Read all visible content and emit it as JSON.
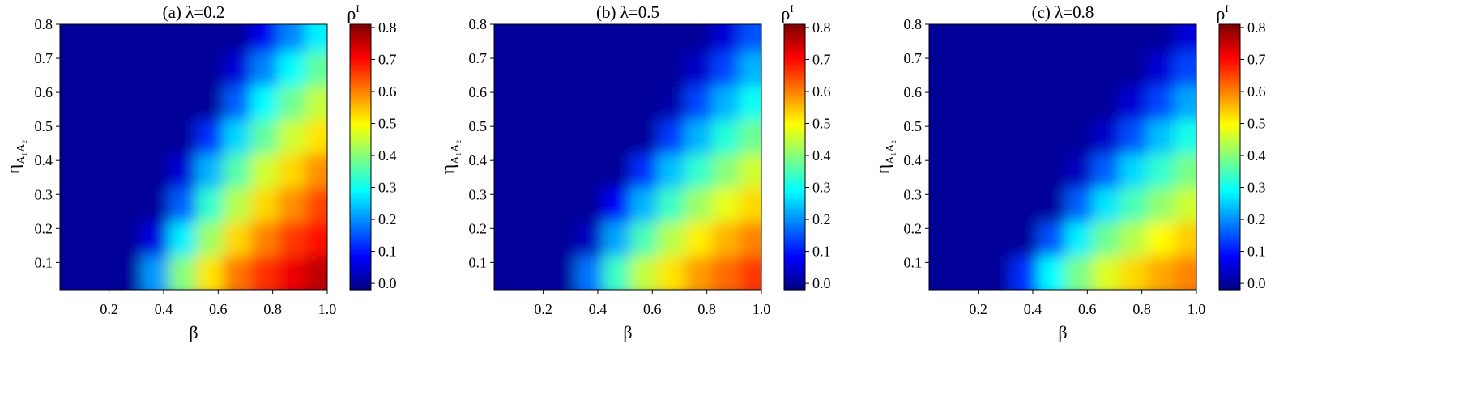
{
  "chart_data": [
    {
      "type": "heatmap",
      "title": "(a) λ=0.2",
      "xlabel": "β",
      "ylabel": {
        "main": "η",
        "sub": "A₁A₂"
      },
      "colorbar_label": {
        "main": "ρ",
        "sup": "I"
      },
      "colormap": "jet",
      "x": [
        0.07,
        0.17,
        0.27,
        0.37,
        0.47,
        0.57,
        0.67,
        0.77,
        0.87,
        0.97
      ],
      "y": [
        0.07,
        0.17,
        0.27,
        0.37,
        0.47,
        0.57,
        0.67,
        0.77
      ],
      "z": [
        [
          0,
          0,
          0,
          0.21,
          0.4,
          0.52,
          0.61,
          0.67,
          0.72,
          0.76
        ],
        [
          0,
          0,
          0,
          0.06,
          0.28,
          0.42,
          0.53,
          0.6,
          0.66,
          0.7
        ],
        [
          0,
          0,
          0,
          0,
          0.16,
          0.33,
          0.44,
          0.53,
          0.59,
          0.65
        ],
        [
          0,
          0,
          0,
          0,
          0.05,
          0.23,
          0.36,
          0.46,
          0.53,
          0.59
        ],
        [
          0,
          0,
          0,
          0,
          0,
          0.12,
          0.26,
          0.37,
          0.46,
          0.52
        ],
        [
          0,
          0,
          0,
          0,
          0,
          0,
          0.16,
          0.29,
          0.38,
          0.45
        ],
        [
          0,
          0,
          0,
          0,
          0,
          0,
          0.05,
          0.19,
          0.29,
          0.37
        ],
        [
          0,
          0,
          0,
          0,
          0,
          0,
          0,
          0.07,
          0.19,
          0.28
        ]
      ],
      "xlim": [
        0.02,
        1.0
      ],
      "ylim": [
        0.02,
        0.8
      ],
      "clim": [
        -0.02,
        0.81
      ],
      "xticks": [
        0.2,
        0.4,
        0.6,
        0.8,
        {
          "value": 1,
          "label": "1.0"
        }
      ],
      "yticks": [
        0.1,
        0.2,
        0.3,
        0.4,
        0.5,
        0.6,
        0.7,
        0.8
      ],
      "cticks": [
        {
          "value": 0,
          "label": "0.0"
        },
        0.1,
        0.2,
        0.3,
        0.4,
        0.5,
        0.6,
        0.7,
        0.8
      ]
    },
    {
      "type": "heatmap",
      "title": "(b) λ=0.5",
      "xlabel": "β",
      "ylabel": {
        "main": "η",
        "sub": "A₁A₂"
      },
      "colorbar_label": {
        "main": "ρ",
        "sup": "I"
      },
      "colormap": "jet",
      "x": [
        0.07,
        0.17,
        0.27,
        0.37,
        0.47,
        0.57,
        0.67,
        0.77,
        0.87,
        0.97
      ],
      "y": [
        0.07,
        0.17,
        0.27,
        0.37,
        0.47,
        0.57,
        0.67,
        0.77
      ],
      "z": [
        [
          0,
          0,
          0,
          0.18,
          0.34,
          0.45,
          0.52,
          0.58,
          0.62,
          0.66
        ],
        [
          0,
          0,
          0,
          0.03,
          0.22,
          0.35,
          0.44,
          0.51,
          0.56,
          0.6
        ],
        [
          0,
          0,
          0,
          0,
          0.08,
          0.23,
          0.34,
          0.42,
          0.48,
          0.53
        ],
        [
          0,
          0,
          0,
          0,
          0,
          0.12,
          0.24,
          0.33,
          0.4,
          0.46
        ],
        [
          0,
          0,
          0,
          0,
          0,
          0,
          0.13,
          0.23,
          0.32,
          0.38
        ],
        [
          0,
          0,
          0,
          0,
          0,
          0,
          0.01,
          0.14,
          0.23,
          0.3
        ],
        [
          0,
          0,
          0,
          0,
          0,
          0,
          0,
          0.04,
          0.14,
          0.23
        ],
        [
          0,
          0,
          0,
          0,
          0,
          0,
          0,
          0,
          0.05,
          0.15
        ]
      ],
      "xlim": [
        0.02,
        1.0
      ],
      "ylim": [
        0.02,
        0.8
      ],
      "clim": [
        -0.02,
        0.81
      ],
      "xticks": [
        0.2,
        0.4,
        0.6,
        0.8,
        {
          "value": 1,
          "label": "1.0"
        }
      ],
      "yticks": [
        0.1,
        0.2,
        0.3,
        0.4,
        0.5,
        0.6,
        0.7,
        0.8
      ],
      "cticks": [
        {
          "value": 0,
          "label": "0.0"
        },
        0.1,
        0.2,
        0.3,
        0.4,
        0.5,
        0.6,
        0.7,
        0.8
      ]
    },
    {
      "type": "heatmap",
      "title": "(c) λ=0.8",
      "xlabel": "β",
      "ylabel": {
        "main": "η",
        "sub": "A₁A₂"
      },
      "colorbar_label": {
        "main": "ρ",
        "sup": "I"
      },
      "colormap": "jet",
      "x": [
        0.07,
        0.17,
        0.27,
        0.37,
        0.47,
        0.57,
        0.67,
        0.77,
        0.87,
        0.97
      ],
      "y": [
        0.07,
        0.17,
        0.27,
        0.37,
        0.47,
        0.57,
        0.67,
        0.77
      ],
      "z": [
        [
          0,
          0,
          0,
          0.12,
          0.29,
          0.39,
          0.47,
          0.53,
          0.57,
          0.6
        ],
        [
          0,
          0,
          0,
          0,
          0.15,
          0.28,
          0.38,
          0.44,
          0.5,
          0.54
        ],
        [
          0,
          0,
          0,
          0,
          0,
          0.16,
          0.27,
          0.35,
          0.41,
          0.46
        ],
        [
          0,
          0,
          0,
          0,
          0,
          0.03,
          0.16,
          0.26,
          0.33,
          0.39
        ],
        [
          0,
          0,
          0,
          0,
          0,
          0,
          0.04,
          0.15,
          0.24,
          0.31
        ],
        [
          0,
          0,
          0,
          0,
          0,
          0,
          0,
          0.05,
          0.14,
          0.22
        ],
        [
          0,
          0,
          0,
          0,
          0,
          0,
          0,
          0,
          0.05,
          0.14
        ],
        [
          0,
          0,
          0,
          0,
          0,
          0,
          0,
          0,
          0,
          0.05
        ]
      ],
      "xlim": [
        0.02,
        1.0
      ],
      "ylim": [
        0.02,
        0.8
      ],
      "clim": [
        -0.02,
        0.81
      ],
      "xticks": [
        0.2,
        0.4,
        0.6,
        0.8,
        {
          "value": 1,
          "label": "1.0"
        }
      ],
      "yticks": [
        0.1,
        0.2,
        0.3,
        0.4,
        0.5,
        0.6,
        0.7,
        0.8
      ],
      "cticks": [
        {
          "value": 0,
          "label": "0.0"
        },
        0.1,
        0.2,
        0.3,
        0.4,
        0.5,
        0.6,
        0.7,
        0.8
      ]
    }
  ]
}
